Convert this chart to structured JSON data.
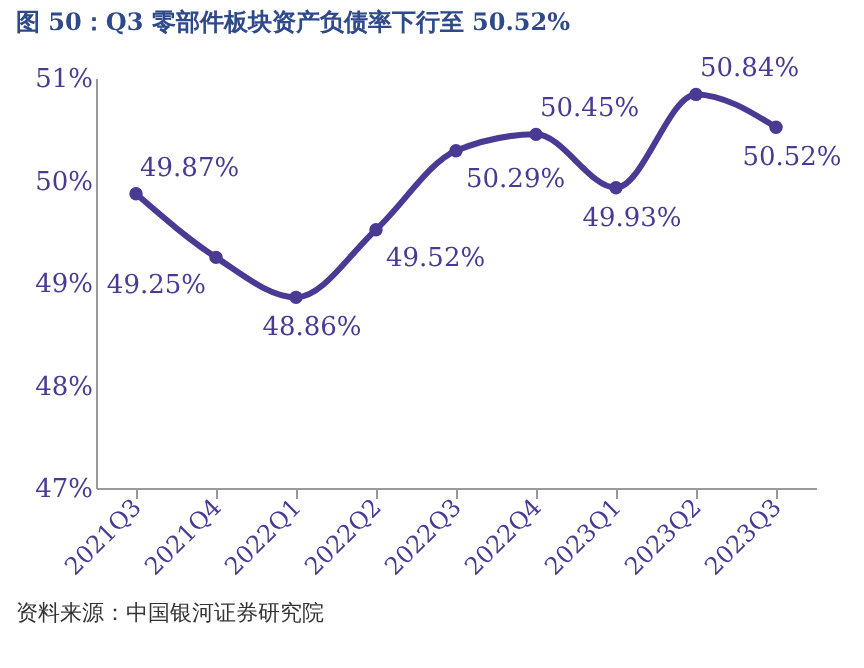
{
  "chart_data": {
    "type": "line",
    "title": "图 50：Q3 零部件板块资产负债率下行至 50.52%",
    "categories": [
      "2021Q3",
      "2021Q4",
      "2022Q1",
      "2022Q2",
      "2022Q3",
      "2022Q4",
      "2023Q1",
      "2023Q2",
      "2023Q3"
    ],
    "series": [
      {
        "color": "#4a3a94",
        "values": [
          49.87,
          49.25,
          48.86,
          49.52,
          50.29,
          50.45,
          49.93,
          50.84,
          50.52
        ],
        "value_labels": [
          "49.87%",
          "49.25%",
          "48.86%",
          "49.52%",
          "50.29%",
          "50.45%",
          "49.93%",
          "50.84%",
          "50.52%"
        ]
      }
    ],
    "ylim": [
      47,
      51
    ],
    "yticks": [
      {
        "value": 47,
        "label": "47%"
      },
      {
        "value": 48,
        "label": "48%"
      },
      {
        "value": 49,
        "label": "49%"
      },
      {
        "value": 50,
        "label": "50%"
      },
      {
        "value": 51,
        "label": "51%"
      }
    ],
    "grid": false,
    "legend": false,
    "marker": "circle",
    "line_style": "solid",
    "annotations": [
      "资料来源：中国银河证券研究院"
    ]
  }
}
